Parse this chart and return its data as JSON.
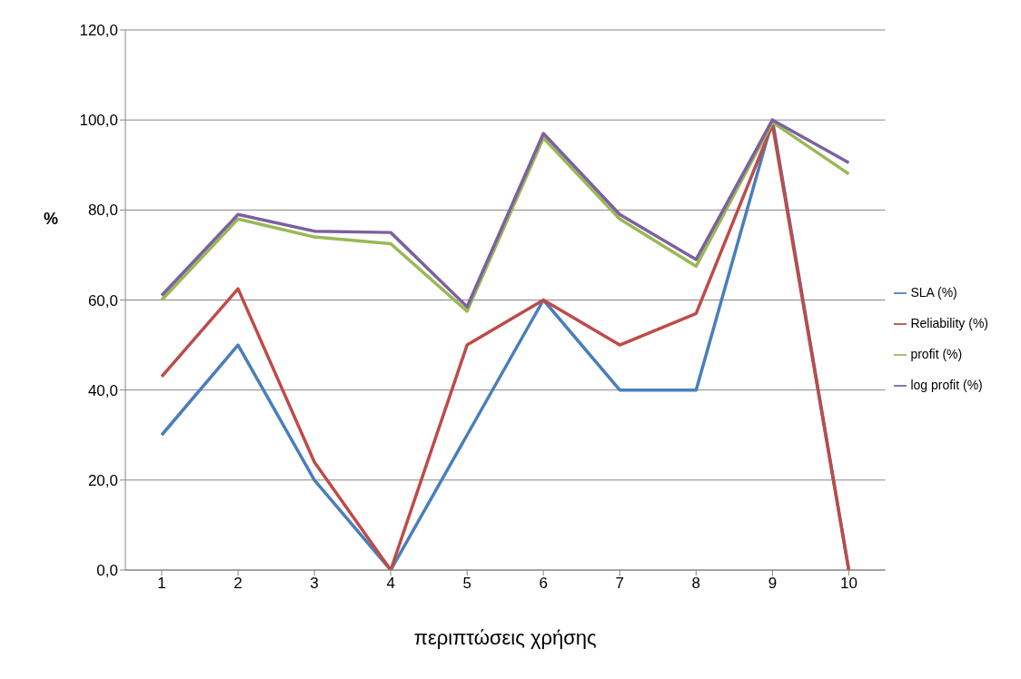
{
  "chart_data": {
    "type": "line",
    "xlabel": "περιπτώσεις χρήσης",
    "ylabel": "%",
    "categories": [
      "1",
      "2",
      "3",
      "4",
      "5",
      "6",
      "7",
      "8",
      "9",
      "10"
    ],
    "series": [
      {
        "name": "SLA (%)",
        "color": "#4a7ebb",
        "values": [
          30,
          50,
          20,
          0,
          30,
          60,
          40,
          40,
          100,
          0
        ]
      },
      {
        "name": "Reliability (%)",
        "color": "#be4b48",
        "values": [
          43,
          62.5,
          24,
          0,
          50,
          60,
          50,
          57,
          99,
          0
        ]
      },
      {
        "name": "profit (%)",
        "color": "#98b954",
        "values": [
          60,
          78,
          74,
          72.5,
          57.5,
          96,
          78,
          67.5,
          99.5,
          88
        ]
      },
      {
        "name": "log profit (%)",
        "color": "#7d60a0",
        "values": [
          61,
          79,
          75.3,
          75,
          58.5,
          97,
          79,
          69,
          100,
          90.5
        ]
      }
    ],
    "ylim": [
      0,
      120
    ],
    "yticks": [
      {
        "value": 0,
        "label": "0,0"
      },
      {
        "value": 20,
        "label": "20,0"
      },
      {
        "value": 40,
        "label": "40,0"
      },
      {
        "value": 60,
        "label": "60,0"
      },
      {
        "value": 80,
        "label": "80,0"
      },
      {
        "value": 100,
        "label": "100,0"
      },
      {
        "value": 120,
        "label": "120,0"
      }
    ],
    "grid": "y",
    "legend": "right",
    "marker": "none",
    "line_style": "solid"
  }
}
